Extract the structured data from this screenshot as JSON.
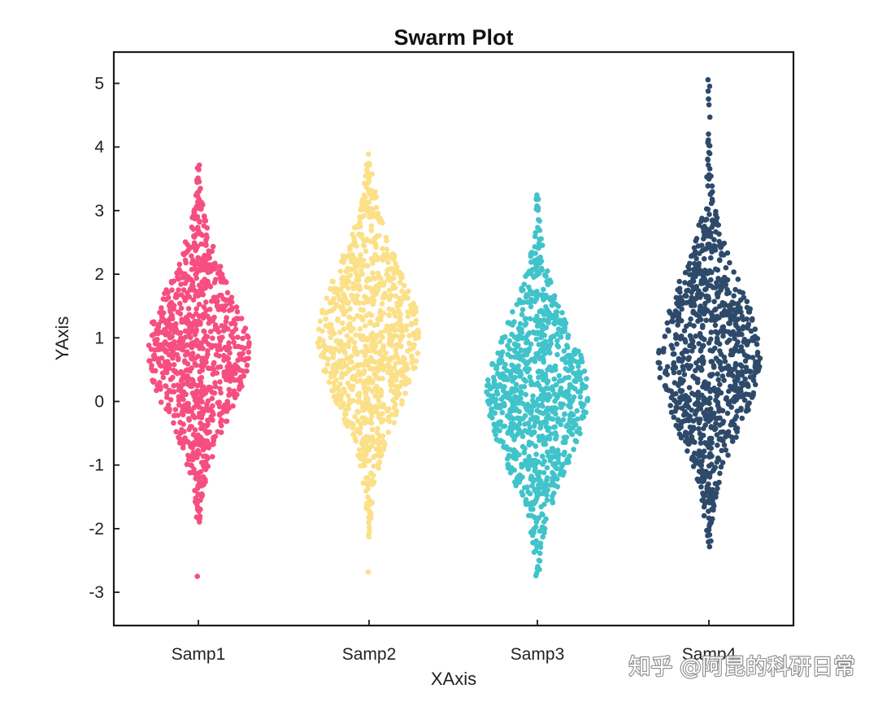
{
  "watermark": "知乎 @阿昆的科研日常",
  "chart_data": {
    "type": "scatter",
    "subtype": "swarm",
    "title": "Swarm Plot",
    "xlabel": "XAxis",
    "ylabel": "YAxis",
    "ylim": [
      -3.5,
      5.5
    ],
    "yticks": [
      -3,
      -2,
      -1,
      0,
      1,
      2,
      3,
      4,
      5
    ],
    "categories": [
      "Samp1",
      "Samp2",
      "Samp3",
      "Samp4"
    ],
    "grid": false,
    "legend": "none",
    "series": [
      {
        "category": "Samp1",
        "color": "#F64E80",
        "points_per_group": 900,
        "distribution": {
          "mode": 0.8,
          "min": -1.9,
          "max": 3.9,
          "outliers": [
            -2.75
          ]
        }
      },
      {
        "category": "Samp2",
        "color": "#FBE088",
        "points_per_group": 900,
        "distribution": {
          "mode": 1.0,
          "min": -2.2,
          "max": 3.9,
          "outliers": [
            -2.68
          ]
        }
      },
      {
        "category": "Samp3",
        "color": "#41C3CA",
        "points_per_group": 900,
        "distribution": {
          "mode": 0.1,
          "min": -2.75,
          "max": 3.3,
          "outliers": []
        }
      },
      {
        "category": "Samp4",
        "color": "#2E4A6A",
        "points_per_group": 900,
        "distribution": {
          "mode": 0.7,
          "min": -2.3,
          "max": 5.2,
          "outliers": []
        }
      }
    ]
  }
}
